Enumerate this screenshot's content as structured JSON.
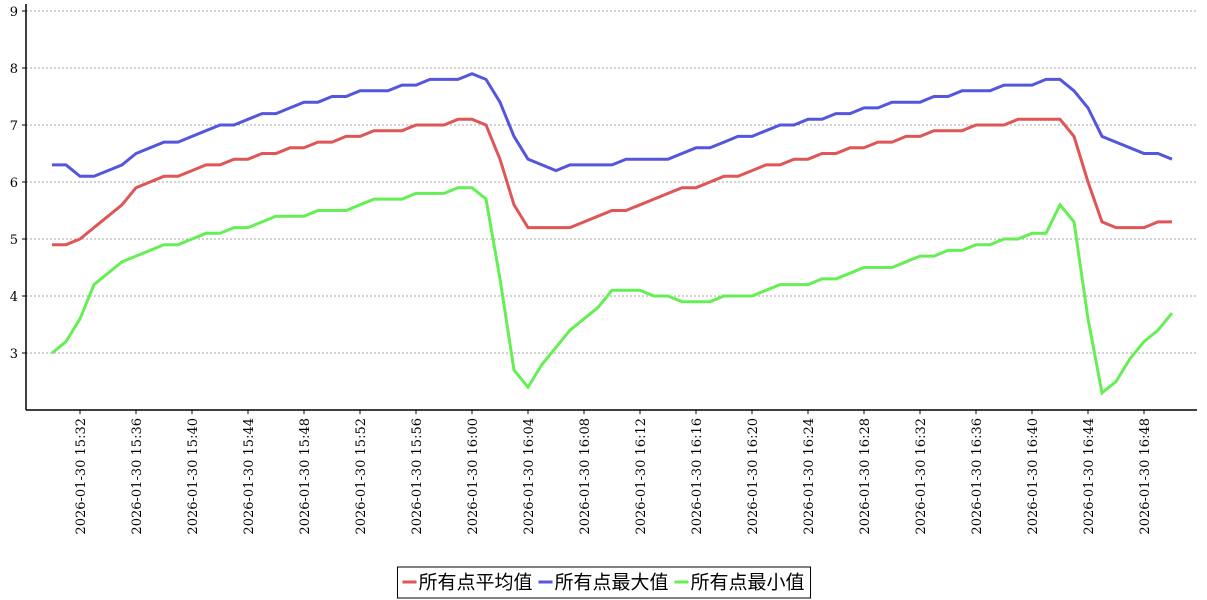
{
  "chart_data": {
    "type": "line",
    "categories": [
      null,
      null,
      "2026-01-30 15:32",
      null,
      null,
      null,
      "2026-01-30 15:36",
      null,
      null,
      null,
      "2026-01-30 15:40",
      null,
      null,
      null,
      "2026-01-30 15:44",
      null,
      null,
      null,
      "2026-01-30 15:48",
      null,
      null,
      null,
      "2026-01-30 15:52",
      null,
      null,
      null,
      "2026-01-30 15:56",
      null,
      null,
      null,
      "2026-01-30 16:00",
      null,
      null,
      null,
      "2026-01-30 16:04",
      null,
      null,
      null,
      "2026-01-30 16:08",
      null,
      null,
      null,
      "2026-01-30 16:12",
      null,
      null,
      null,
      "2026-01-30 16:16",
      null,
      null,
      null,
      "2026-01-30 16:20",
      null,
      null,
      null,
      "2026-01-30 16:24",
      null,
      null,
      null,
      "2026-01-30 16:28",
      null,
      null,
      null,
      "2026-01-30 16:32",
      null,
      null,
      null,
      "2026-01-30 16:36",
      null,
      null,
      null,
      "2026-01-30 16:40",
      null,
      null,
      null,
      "2026-01-30 16:44",
      null,
      null,
      null,
      "2026-01-30 16:48",
      null,
      null
    ],
    "series": [
      {
        "name": "所有点平均值",
        "color": "#e05555",
        "values": [
          4.9,
          4.9,
          5.0,
          5.2,
          5.4,
          5.6,
          5.9,
          6.0,
          6.1,
          6.1,
          6.2,
          6.3,
          6.3,
          6.4,
          6.4,
          6.5,
          6.5,
          6.6,
          6.6,
          6.7,
          6.7,
          6.8,
          6.8,
          6.9,
          6.9,
          6.9,
          7.0,
          7.0,
          7.0,
          7.1,
          7.1,
          7.0,
          6.4,
          5.6,
          5.2,
          5.2,
          5.2,
          5.2,
          5.3,
          5.4,
          5.5,
          5.5,
          5.6,
          5.7,
          5.8,
          5.9,
          5.9,
          6.0,
          6.1,
          6.1,
          6.2,
          6.3,
          6.3,
          6.4,
          6.4,
          6.5,
          6.5,
          6.6,
          6.6,
          6.7,
          6.7,
          6.8,
          6.8,
          6.9,
          6.9,
          6.9,
          7.0,
          7.0,
          7.0,
          7.1,
          7.1,
          7.1,
          7.1,
          6.8,
          6.0,
          5.3,
          5.2,
          5.2,
          5.2,
          5.3,
          5.3
        ]
      },
      {
        "name": "所有点最大值",
        "color": "#5555dd",
        "values": [
          6.3,
          6.3,
          6.1,
          6.1,
          6.2,
          6.3,
          6.5,
          6.6,
          6.7,
          6.7,
          6.8,
          6.9,
          7.0,
          7.0,
          7.1,
          7.2,
          7.2,
          7.3,
          7.4,
          7.4,
          7.5,
          7.5,
          7.6,
          7.6,
          7.6,
          7.7,
          7.7,
          7.8,
          7.8,
          7.8,
          7.9,
          7.8,
          7.4,
          6.8,
          6.4,
          6.3,
          6.2,
          6.3,
          6.3,
          6.3,
          6.3,
          6.4,
          6.4,
          6.4,
          6.4,
          6.5,
          6.6,
          6.6,
          6.7,
          6.8,
          6.8,
          6.9,
          7.0,
          7.0,
          7.1,
          7.1,
          7.2,
          7.2,
          7.3,
          7.3,
          7.4,
          7.4,
          7.4,
          7.5,
          7.5,
          7.6,
          7.6,
          7.6,
          7.7,
          7.7,
          7.7,
          7.8,
          7.8,
          7.6,
          7.3,
          6.8,
          6.7,
          6.6,
          6.5,
          6.5,
          6.4
        ]
      },
      {
        "name": "所有点最小值",
        "color": "#66ee55",
        "values": [
          3.0,
          3.2,
          3.6,
          4.2,
          4.4,
          4.6,
          4.7,
          4.8,
          4.9,
          4.9,
          5.0,
          5.1,
          5.1,
          5.2,
          5.2,
          5.3,
          5.4,
          5.4,
          5.4,
          5.5,
          5.5,
          5.5,
          5.6,
          5.7,
          5.7,
          5.7,
          5.8,
          5.8,
          5.8,
          5.9,
          5.9,
          5.7,
          4.3,
          2.7,
          2.4,
          2.8,
          3.1,
          3.4,
          3.6,
          3.8,
          4.1,
          4.1,
          4.1,
          4.0,
          4.0,
          3.9,
          3.9,
          3.9,
          4.0,
          4.0,
          4.0,
          4.1,
          4.2,
          4.2,
          4.2,
          4.3,
          4.3,
          4.4,
          4.5,
          4.5,
          4.5,
          4.6,
          4.7,
          4.7,
          4.8,
          4.8,
          4.9,
          4.9,
          5.0,
          5.0,
          5.1,
          5.1,
          5.6,
          5.3,
          3.6,
          2.3,
          2.5,
          2.9,
          3.2,
          3.4,
          3.7
        ]
      }
    ],
    "ylim": [
      2,
      9
    ],
    "yticks": [
      3,
      4,
      5,
      6,
      7,
      8,
      9
    ],
    "grid": true,
    "legend": "bottom"
  }
}
